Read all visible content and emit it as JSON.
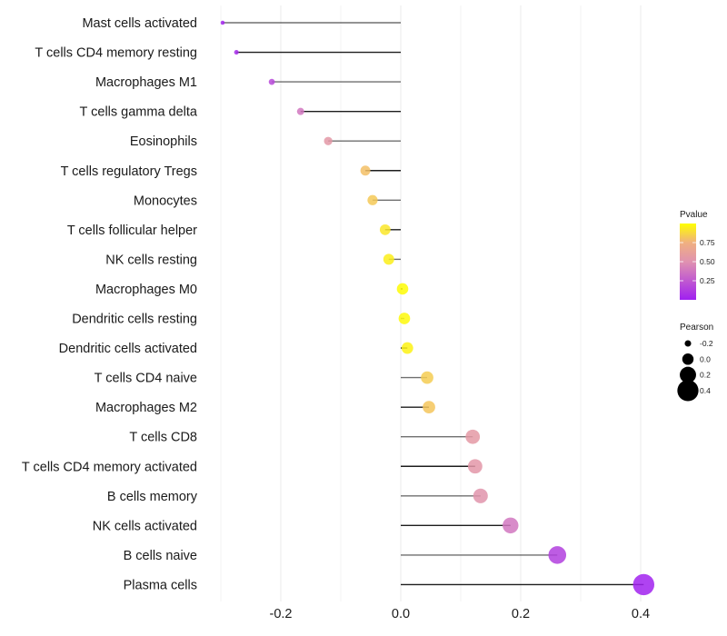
{
  "chart_data": {
    "type": "lollipop",
    "title": "",
    "xlabel": "",
    "ylabel": "",
    "xlim": [
      -0.3,
      0.42
    ],
    "x_ticks": [
      -0.2,
      0.0,
      0.2,
      0.4
    ],
    "x_tick_labels": [
      "-0.2",
      "0.0",
      "0.2",
      "0.4"
    ],
    "minor_grid": [
      -0.3,
      -0.1,
      0.1,
      0.3
    ],
    "grid": true,
    "categories": [
      "Mast cells activated",
      "T cells CD4 memory resting",
      "Macrophages M1",
      "T cells gamma delta",
      "Eosinophils",
      "T cells regulatory  Tregs ",
      "Monocytes",
      "T cells follicular helper",
      "NK cells resting",
      "Macrophages M0",
      "Dendritic cells resting",
      "Dendritic cells activated",
      "T cells CD4 naive",
      "Macrophages M2",
      "T cells CD8",
      "T cells CD4 memory activated",
      "B cells memory",
      "NK cells activated",
      "B cells naive",
      "Plasma cells"
    ],
    "values": [
      -0.297,
      -0.274,
      -0.215,
      -0.167,
      -0.121,
      -0.059,
      -0.047,
      -0.026,
      -0.02,
      0.003,
      0.006,
      0.011,
      0.044,
      0.047,
      0.12,
      0.124,
      0.133,
      0.183,
      0.261,
      0.405
    ],
    "pvalues": [
      0.02,
      0.05,
      0.18,
      0.38,
      0.55,
      0.8,
      0.83,
      0.92,
      0.95,
      0.99,
      0.98,
      0.96,
      0.84,
      0.82,
      0.56,
      0.54,
      0.52,
      0.38,
      0.14,
      0.01
    ],
    "color_legend": {
      "title": "Pvalue",
      "ticks": [
        0.25,
        0.5,
        0.75
      ],
      "tick_labels": [
        "0.25",
        "0.50",
        "0.75"
      ],
      "range": [
        0.0,
        1.0
      ],
      "low_color": "#A020F0",
      "mid_color": "#E8A0A0",
      "high_color": "#FFFF00",
      "placement": "right"
    },
    "size_legend": {
      "title": "Pearson",
      "values": [
        -0.2,
        0.0,
        0.2,
        0.4
      ],
      "labels": [
        "-0.2",
        "0.0",
        "0.2",
        "0.4"
      ],
      "placement": "right"
    }
  }
}
